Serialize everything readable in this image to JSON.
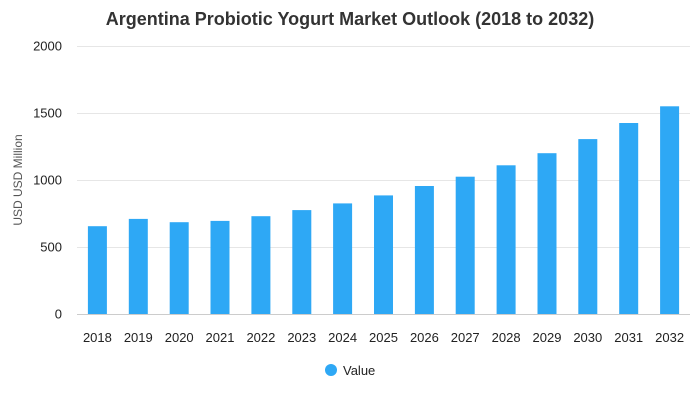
{
  "chart_data": {
    "type": "bar",
    "title": "Argentina Probiotic Yogurt Market Outlook (2018 to 2032)",
    "xlabel": "",
    "ylabel": "USD USD Million",
    "ylim": [
      0,
      2000
    ],
    "yticks": [
      0,
      500,
      1000,
      1500,
      2000
    ],
    "categories": [
      "2018",
      "2019",
      "2020",
      "2021",
      "2022",
      "2023",
      "2024",
      "2025",
      "2026",
      "2027",
      "2028",
      "2029",
      "2030",
      "2031",
      "2032"
    ],
    "series": [
      {
        "name": "Value",
        "color": "#2ea8f5",
        "values": [
          655,
          710,
          685,
          695,
          730,
          775,
          825,
          885,
          955,
          1025,
          1110,
          1200,
          1305,
          1425,
          1550
        ]
      }
    ],
    "grid": true,
    "legend": "bottom-center"
  }
}
